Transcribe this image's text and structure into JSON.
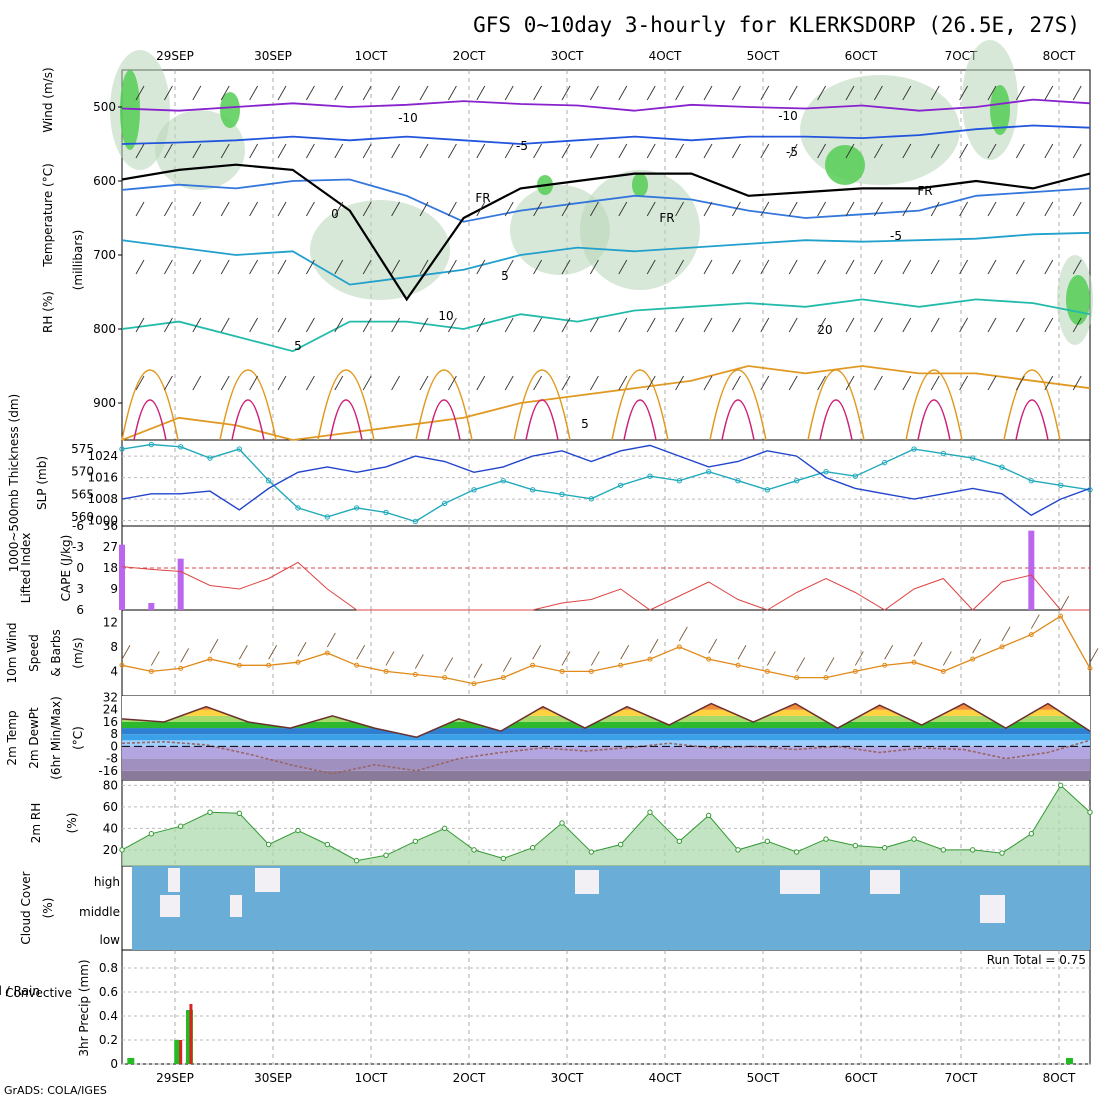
{
  "title": "GFS 0~10day 3-hourly for KLERKSDORP (26.5E, 27S)",
  "footer": "GrADS: COLA/IGES",
  "run_total": "Run Total = 0.75",
  "colors": {
    "rh": "#2eb82e",
    "temp": "#d9534f",
    "wind": "#2233bb",
    "thickness": "#22aabb",
    "slp": "#2244cc",
    "lifted": "#dd4444",
    "cape": "#bb66ee",
    "wind10": "#e08a1a",
    "barb": "#7a5a3a",
    "dewpt": "#996666",
    "rh2m": "#339933",
    "cloud": "#6aadd6",
    "precip_total": "#22bb22",
    "precip_conv": "#dd2222",
    "fr": "#000000"
  },
  "chart_data": [
    {
      "id": "upper_air",
      "type": "heatmap",
      "title": "GFS 0~10day 3-hourly for KLERKSDORP (26.5E, 27S)",
      "x_ticks": [
        "29SEP",
        "30SEP",
        "1OCT",
        "2OCT",
        "3OCT",
        "4OCT",
        "5OCT",
        "6OCT",
        "7OCT",
        "8OCT"
      ],
      "ylabel": "(millibars)",
      "ylabel_parts": [
        "RH (%)",
        "Temperature (°C)",
        "Wind (m/s)"
      ],
      "y_ticks": [
        500,
        600,
        700,
        800,
        900
      ],
      "ylim": [
        950,
        450
      ],
      "contour_labels": [
        "-10",
        "-10",
        "-5",
        "-5",
        "0",
        "-5",
        "5",
        "5",
        "5",
        "10",
        "20",
        "FR",
        "FR",
        "FR"
      ],
      "temp_contours": [
        {
          "name": "-10",
          "level": [
            502,
            505,
            500,
            495,
            500,
            497,
            492,
            496,
            498,
            505,
            497,
            500,
            502,
            498,
            505,
            500,
            490,
            495
          ]
        },
        {
          "name": "-5",
          "level": [
            550,
            548,
            545,
            540,
            545,
            540,
            545,
            550,
            545,
            540,
            545,
            540,
            540,
            542,
            538,
            530,
            525,
            528
          ]
        },
        {
          "name": "0",
          "level": [
            612,
            605,
            610,
            600,
            598,
            620,
            655,
            640,
            630,
            620,
            625,
            640,
            650,
            645,
            640,
            620,
            615,
            610
          ]
        },
        {
          "name": "5",
          "level": [
            680,
            690,
            700,
            695,
            740,
            730,
            720,
            700,
            690,
            695,
            690,
            685,
            680,
            682,
            680,
            678,
            672,
            670
          ]
        },
        {
          "name": "10",
          "level": [
            800,
            790,
            810,
            830,
            790,
            790,
            800,
            780,
            790,
            775,
            770,
            765,
            770,
            760,
            770,
            760,
            765,
            780
          ]
        },
        {
          "name": "20",
          "level": [
            950,
            920,
            930,
            950,
            940,
            930,
            920,
            900,
            890,
            880,
            870,
            850,
            860,
            850,
            860,
            860,
            870,
            880
          ]
        }
      ],
      "freezing_level": [
        598,
        585,
        578,
        585,
        640,
        760,
        650,
        610,
        600,
        590,
        590,
        620,
        615,
        610,
        610,
        600,
        610,
        590
      ]
    },
    {
      "id": "thickness_slp",
      "type": "line",
      "x_ticks": [
        "29SEP",
        "30SEP",
        "1OCT",
        "2OCT",
        "3OCT",
        "4OCT",
        "5OCT",
        "6OCT",
        "7OCT",
        "8OCT"
      ],
      "ylabel_left": "1000~500mb Thickness (dm)",
      "ylabel_right": "SLP (mb)",
      "y_left_ticks": [
        560,
        565,
        570,
        575
      ],
      "y_right_ticks": [
        1000,
        1008,
        1016,
        1024
      ],
      "ylim_left": [
        558,
        577
      ],
      "ylim_right": [
        998,
        1030
      ],
      "series": [
        {
          "name": "Thickness",
          "axis": "left",
          "values": [
            575,
            576,
            575.5,
            573,
            575,
            568,
            562,
            560,
            562,
            561,
            559,
            563,
            566,
            568,
            566,
            565,
            564,
            567,
            569,
            568,
            570,
            568,
            566,
            568,
            570,
            569,
            572,
            575,
            574,
            573,
            571,
            568,
            567,
            566
          ]
        },
        {
          "name": "SLP",
          "axis": "right",
          "values": [
            1008,
            1010,
            1010,
            1011,
            1004,
            1012,
            1018,
            1020,
            1018,
            1020,
            1024,
            1022,
            1018,
            1020,
            1024,
            1026,
            1022,
            1026,
            1028,
            1024,
            1020,
            1022,
            1026,
            1024,
            1016,
            1012,
            1010,
            1008,
            1010,
            1012,
            1010,
            1002,
            1008,
            1012
          ]
        }
      ]
    },
    {
      "id": "li_cape",
      "type": "bar",
      "x_ticks": [
        "29SEP",
        "30SEP",
        "1OCT",
        "2OCT",
        "3OCT",
        "4OCT",
        "5OCT",
        "6OCT",
        "7OCT",
        "8OCT"
      ],
      "ylabel_left": "Lifted Index",
      "ylabel_right": "CAPE (J/kg)",
      "y_left_ticks": [
        "-6",
        "-3",
        "0",
        "3",
        "6"
      ],
      "y_right_ticks": [
        9,
        18,
        27,
        36
      ],
      "ylim_left": [
        -6,
        6
      ],
      "ylim_right": [
        0,
        36
      ],
      "cape_values": [
        28,
        3,
        22,
        0,
        0,
        0,
        0,
        0,
        0,
        0,
        0,
        0,
        0,
        0,
        0,
        0,
        0,
        0,
        0,
        0,
        0,
        0,
        0,
        0,
        0,
        0,
        0,
        0,
        0,
        0,
        0,
        34,
        0,
        0
      ],
      "lifted_index": [
        -0.2,
        0.2,
        0.5,
        2.5,
        3,
        1.5,
        -0.8,
        3,
        6,
        6,
        6,
        6,
        6,
        6,
        6,
        5,
        4.5,
        3,
        6,
        4,
        2,
        4.5,
        6,
        3.5,
        1.5,
        3.5,
        6,
        3,
        1.5,
        6,
        2,
        1,
        6,
        6
      ]
    },
    {
      "id": "wind10m",
      "type": "line",
      "x_ticks": [
        "29SEP",
        "30SEP",
        "1OCT",
        "2OCT",
        "3OCT",
        "4OCT",
        "5OCT",
        "6OCT",
        "7OCT",
        "8OCT"
      ],
      "ylabel": "10m Wind Speed & Barbs (m/s)",
      "ylabel_parts": [
        "10m Wind",
        "Speed",
        "& Barbs",
        "(m/s)"
      ],
      "y_ticks": [
        4,
        8,
        12
      ],
      "ylim": [
        0,
        14
      ],
      "values": [
        5,
        4,
        4.5,
        6,
        5,
        5,
        5.5,
        7,
        5,
        4,
        3.5,
        3,
        2,
        3,
        5,
        4,
        4,
        5,
        6,
        8,
        6,
        5,
        4,
        3,
        3,
        4,
        5,
        5.5,
        4,
        6,
        8,
        10,
        13,
        4.5
      ]
    },
    {
      "id": "temp2m",
      "type": "area",
      "x_ticks": [
        "29SEP",
        "30SEP",
        "1OCT",
        "2OCT",
        "3OCT",
        "4OCT",
        "5OCT",
        "6OCT",
        "7OCT",
        "8OCT"
      ],
      "ylabel": "2m Temp 2m DewPt (6hr Min/Max) (°C)",
      "ylabel_parts": [
        "2m Temp",
        "2m DewPt",
        "(6hr Min/Max)",
        "(°C)"
      ],
      "y_ticks": [
        "-16",
        "-8",
        "0",
        "8",
        "16",
        "24",
        "32"
      ],
      "ylim": [
        -22,
        33
      ],
      "temperature": [
        18,
        16,
        26,
        16,
        12,
        20,
        12,
        6,
        18,
        10,
        26,
        12,
        26,
        14,
        28,
        16,
        28,
        12,
        27,
        14,
        28,
        12,
        28,
        10
      ],
      "dewpoint": [
        2,
        3,
        1,
        -5,
        -12,
        -18,
        -12,
        -16,
        -8,
        -4,
        -1,
        -3,
        -1,
        2,
        -1,
        0,
        -2,
        0,
        -4,
        -1,
        -2,
        -8,
        -4,
        4
      ]
    },
    {
      "id": "rh2m",
      "type": "area",
      "x_ticks": [
        "29SEP",
        "30SEP",
        "1OCT",
        "2OCT",
        "3OCT",
        "4OCT",
        "5OCT",
        "6OCT",
        "7OCT",
        "8OCT"
      ],
      "ylabel": "2m RH (%)",
      "y_ticks": [
        20,
        40,
        60,
        80
      ],
      "ylim": [
        5,
        85
      ],
      "values": [
        20,
        35,
        42,
        55,
        54,
        25,
        38,
        25,
        10,
        15,
        28,
        40,
        20,
        12,
        22,
        45,
        18,
        25,
        55,
        28,
        52,
        20,
        28,
        18,
        30,
        24,
        22,
        30,
        20,
        20,
        17,
        35,
        80,
        55
      ]
    },
    {
      "id": "cloud",
      "type": "heatmap",
      "x_ticks": [
        "29SEP",
        "30SEP",
        "1OCT",
        "2OCT",
        "3OCT",
        "4OCT",
        "5OCT",
        "6OCT",
        "7OCT",
        "8OCT"
      ],
      "ylabel": "Cloud Cover (%)",
      "ylabel_parts": [
        "Cloud Cover",
        "(%)"
      ],
      "y_ticks": [
        "low",
        "middle",
        "high"
      ]
    },
    {
      "id": "precip",
      "type": "bar",
      "x_ticks": [
        "29SEP",
        "30SEP",
        "1OCT",
        "2OCT",
        "3OCT",
        "4OCT",
        "5OCT",
        "6OCT",
        "7OCT",
        "8OCT"
      ],
      "ylabel_left": "Total / Rain",
      "ylabel_left2": "Convective",
      "ylabel": "3hr Precip (mm)",
      "y_ticks": [
        0,
        0.2,
        0.4,
        0.6,
        0.8
      ],
      "ylim": [
        0,
        0.95
      ],
      "series": [
        {
          "name": "Total / Rain",
          "values": [
            {
              "x": 0.3,
              "v": 0.05
            },
            {
              "x": 1.9,
              "v": 0.2
            },
            {
              "x": 2.3,
              "v": 0.45
            },
            {
              "x": 32.3,
              "v": 0.05
            }
          ]
        },
        {
          "name": "Convective",
          "values": [
            {
              "x": 2.0,
              "v": 0.2
            },
            {
              "x": 2.35,
              "v": 0.5
            }
          ]
        }
      ]
    }
  ]
}
